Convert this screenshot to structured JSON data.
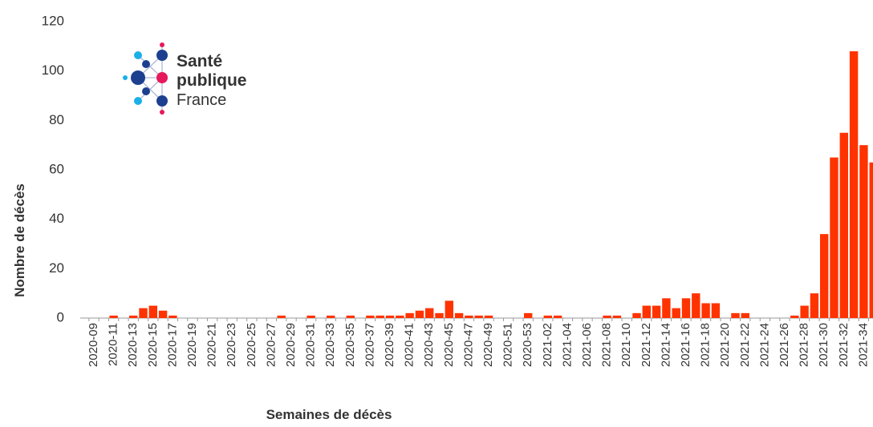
{
  "logo": {
    "line1": "Santé",
    "line2": "publique",
    "line3": "France"
  },
  "chart_data": {
    "type": "bar",
    "x_label": "Semaines de décès",
    "y_label": "Nombre de décès",
    "color": "#ff3300",
    "ylim": [
      0,
      120
    ],
    "yticks": [
      0,
      20,
      40,
      60,
      80,
      100,
      120
    ],
    "categories": [
      "2020-09",
      null,
      "2020-11",
      null,
      "2020-13",
      null,
      "2020-15",
      null,
      "2020-17",
      null,
      "2020-19",
      null,
      "2020-21",
      null,
      "2020-23",
      null,
      "2020-25",
      null,
      "2020-27",
      null,
      "2020-29",
      null,
      "2020-31",
      null,
      "2020-33",
      null,
      "2020-35",
      null,
      "2020-37",
      null,
      "2020-39",
      null,
      "2020-41",
      null,
      "2020-43",
      null,
      "2020-45",
      null,
      "2020-47",
      null,
      "2020-49",
      null,
      "2020-51",
      null,
      "2020-53",
      null,
      "2021-02",
      null,
      "2021-04",
      null,
      "2021-06",
      null,
      "2021-08",
      null,
      "2021-10",
      null,
      "2021-12",
      null,
      "2021-14",
      null,
      "2021-16",
      null,
      "2021-18",
      null,
      "2021-20",
      null,
      "2021-22",
      null,
      "2021-24",
      null,
      "2021-26",
      null,
      "2021-28",
      null,
      "2021-30",
      null,
      "2021-32",
      null,
      "2021-34",
      null
    ],
    "values": [
      0,
      0,
      1,
      0,
      1,
      4,
      5,
      3,
      1,
      0,
      0,
      0,
      0,
      0,
      0,
      0,
      0,
      0,
      0,
      1,
      0,
      0,
      1,
      0,
      1,
      0,
      1,
      0,
      1,
      1,
      1,
      1,
      2,
      3,
      4,
      2,
      7,
      2,
      1,
      1,
      1,
      0,
      0,
      0,
      2,
      0,
      1,
      1,
      0,
      0,
      0,
      0,
      1,
      1,
      0,
      2,
      5,
      5,
      8,
      4,
      8,
      10,
      6,
      6,
      0,
      2,
      2,
      0,
      0,
      0,
      0,
      1,
      5,
      10,
      34,
      65,
      75,
      108,
      70,
      63
    ]
  }
}
